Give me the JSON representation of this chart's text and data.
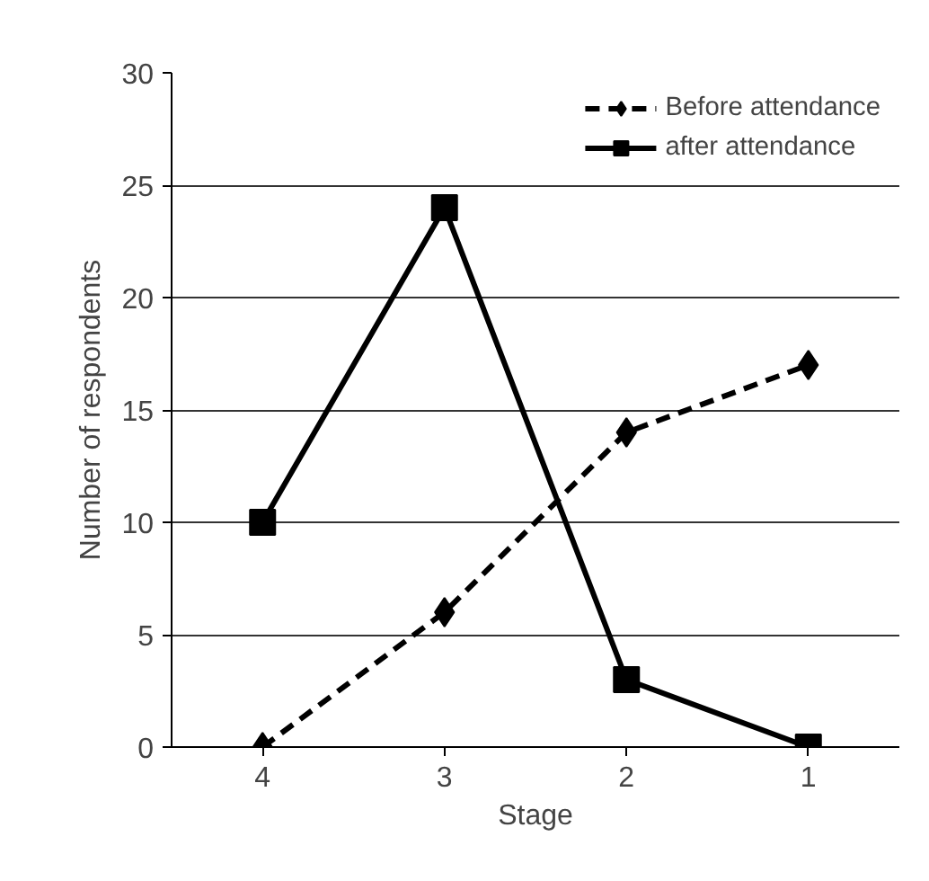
{
  "chart_data": {
    "type": "line",
    "xlabel": "Stage",
    "ylabel": "Number of respondents",
    "categories": [
      "4",
      "3",
      "2",
      "1"
    ],
    "series": [
      {
        "name": "Before attendance",
        "color": "#000000",
        "values": [
          0,
          6,
          14,
          17
        ],
        "line_style": "dashed",
        "marker": "diamond"
      },
      {
        "name": "after attendance",
        "color": "#000000",
        "values": [
          10,
          24,
          3,
          0
        ],
        "line_style": "solid",
        "marker": "square"
      }
    ],
    "ylim": [
      0,
      30
    ],
    "yticks": [
      0,
      5,
      10,
      15,
      20,
      25,
      30
    ],
    "grid": "y",
    "legend": "top right"
  }
}
